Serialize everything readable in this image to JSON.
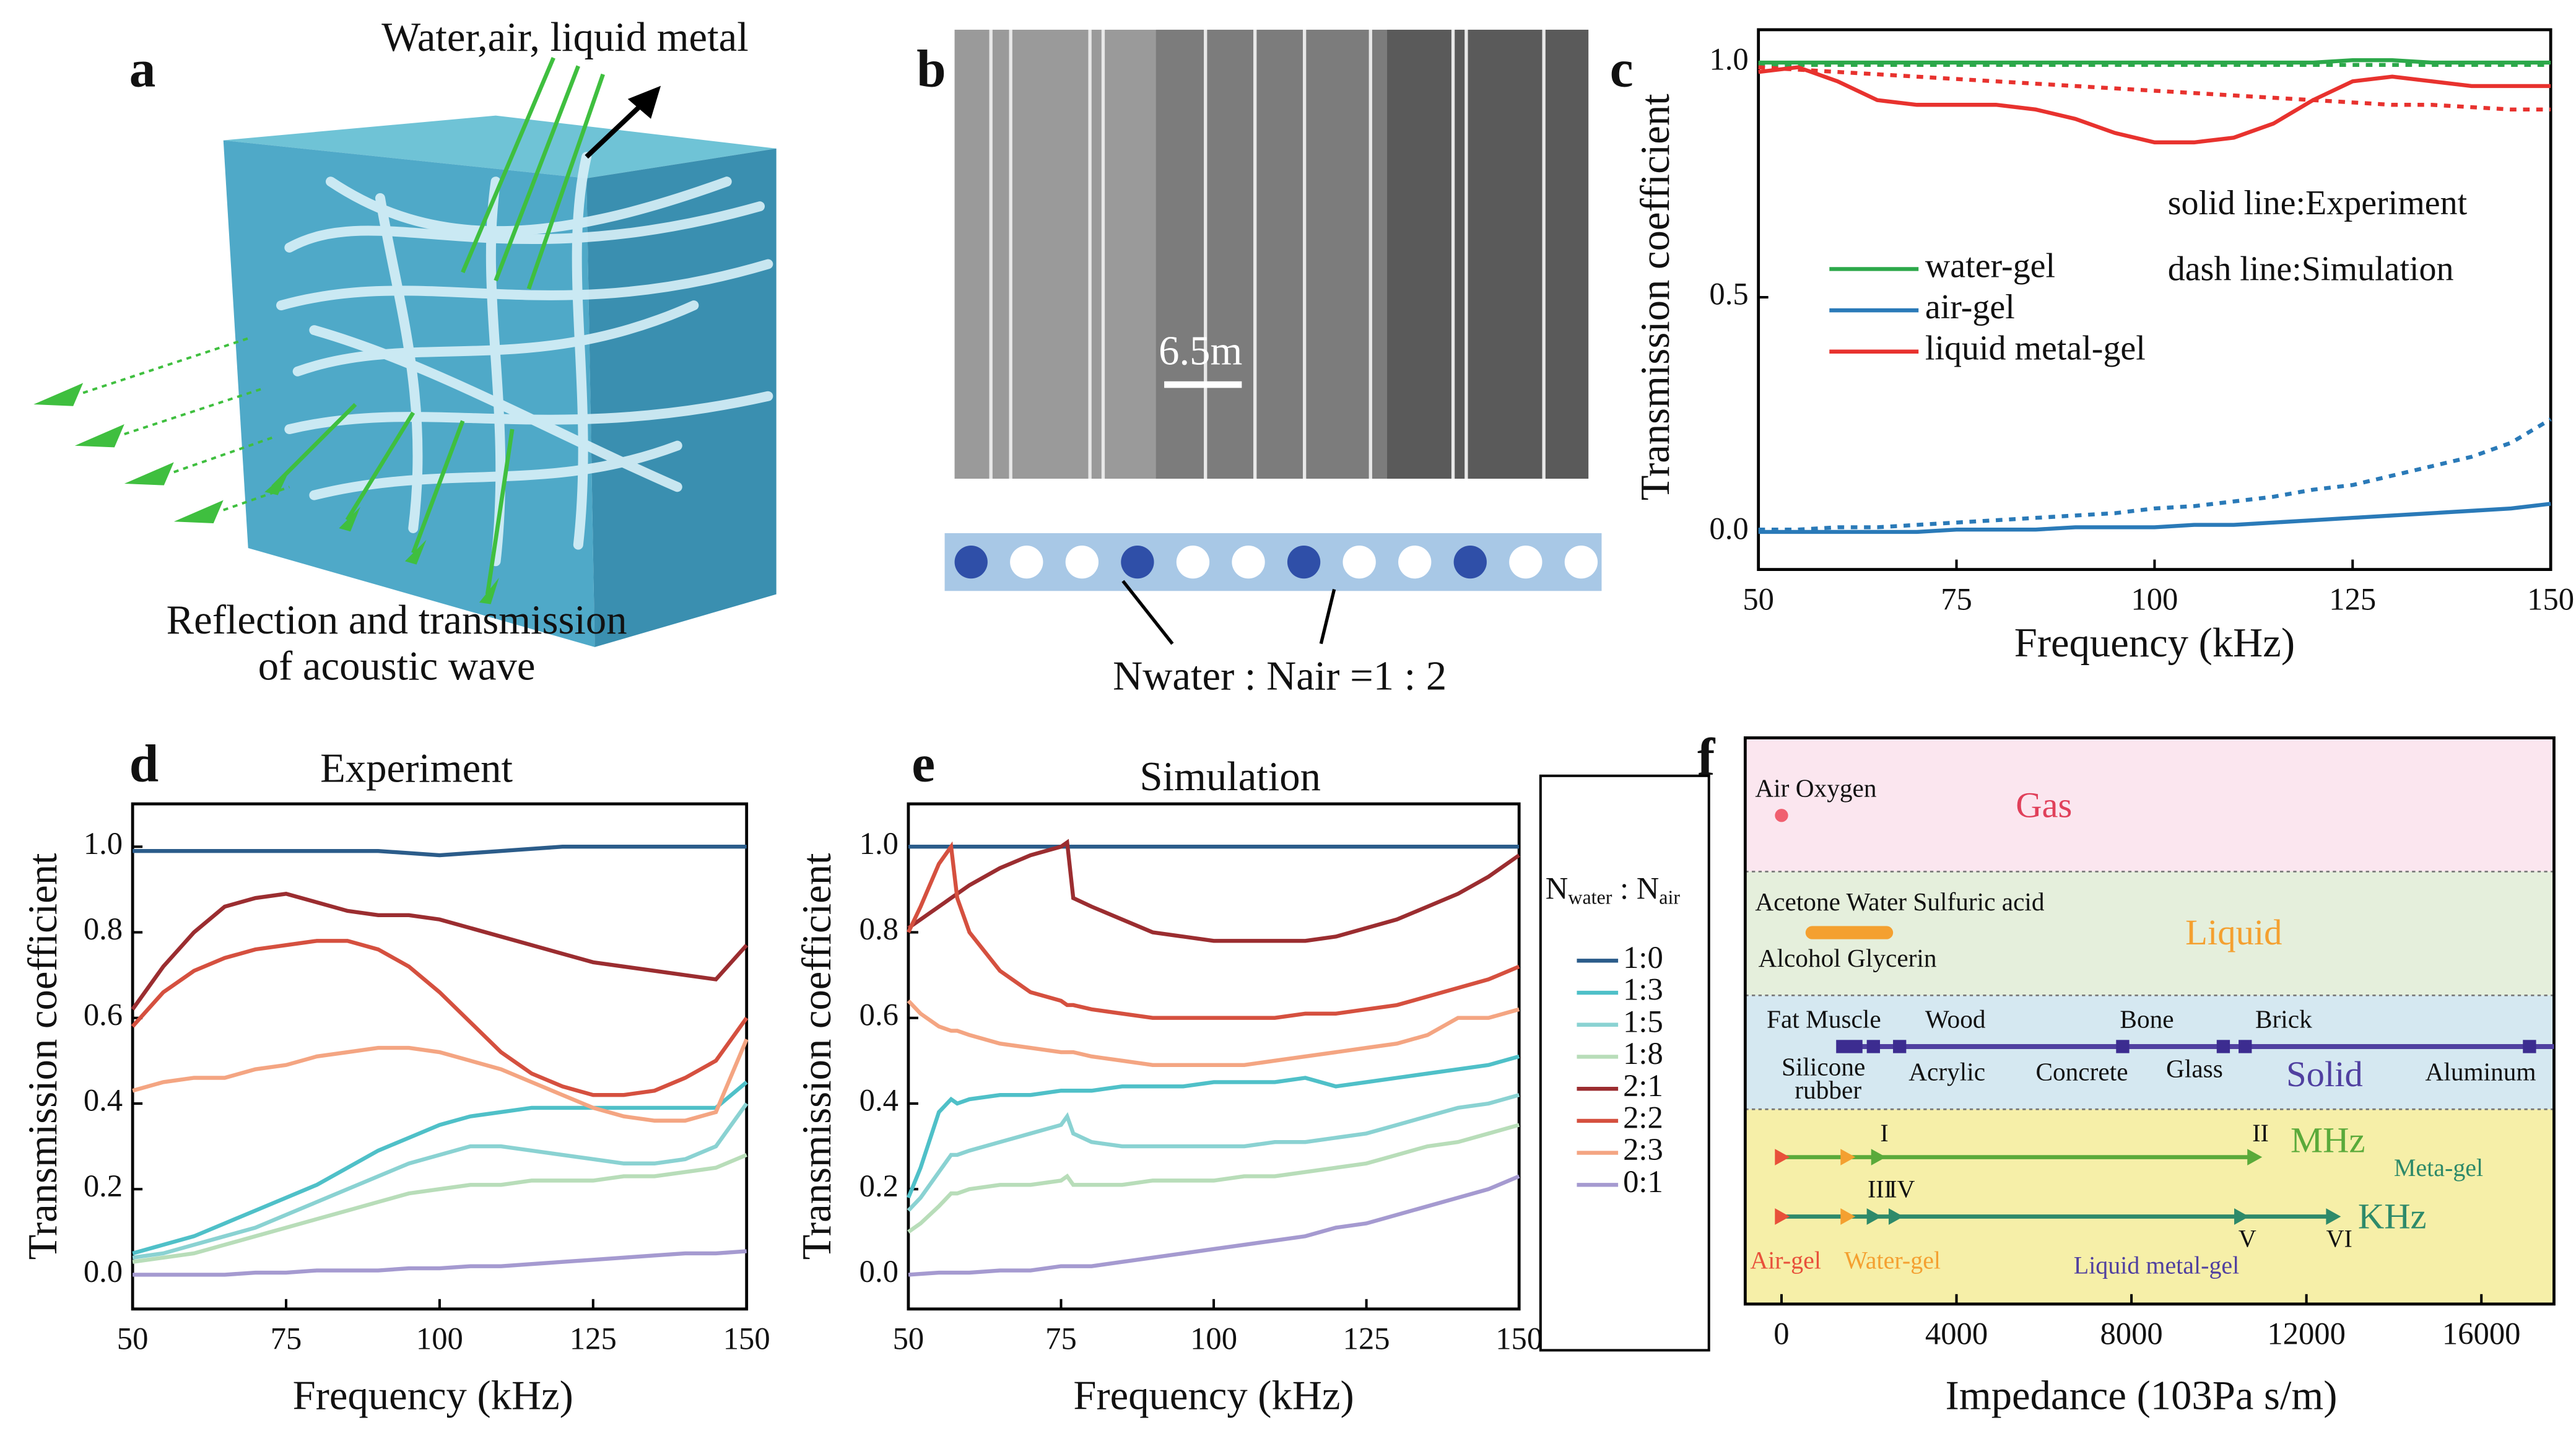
{
  "panel_labels": [
    "a",
    "b",
    "c",
    "d",
    "e",
    "f"
  ],
  "panel_a": {
    "top_label": "Water,air, liquid metal",
    "caption": [
      "Reflection and transmission",
      "of acoustic wave"
    ]
  },
  "panel_b": {
    "scale_label": "6.5m",
    "ratio_label": "Nwater : Nair =1 : 2"
  },
  "chart_data": [
    {
      "type": "line",
      "xlabel": "Frequency (kHz)",
      "ylabel": "Transmission coefficient",
      "annotations": [
        "solid line:Experiment",
        "dash line:Simulation"
      ],
      "xlim": [
        50,
        150
      ],
      "xticks": [
        50,
        75,
        100,
        125,
        150
      ],
      "ylim": [
        -0.08,
        1.07
      ],
      "yticks": [
        {
          "value": 0,
          "label": "0.0"
        },
        0.5,
        {
          "value": 1,
          "label": "1.0"
        }
      ],
      "x": [
        50,
        55,
        60,
        65,
        70,
        75,
        80,
        85,
        90,
        95,
        100,
        105,
        110,
        115,
        120,
        125,
        130,
        135,
        140,
        145,
        150
      ],
      "series": [
        {
          "name": "water-gel",
          "color": "#2ca84a",
          "values": [
            1.0,
            1.0,
            1.0,
            1.0,
            1.0,
            1.0,
            1.0,
            1.0,
            1.0,
            1.0,
            1.0,
            1.0,
            1.0,
            1.0,
            1.0,
            1.005,
            1.005,
            1.0,
            1.0,
            1.0,
            1.0
          ],
          "simulation": [
            0.995,
            0.995,
            0.995,
            0.995,
            0.995,
            0.995,
            0.995,
            0.995,
            0.995,
            0.995,
            0.995,
            0.995,
            0.995,
            0.995,
            0.995,
            0.995,
            0.995,
            0.995,
            0.995,
            0.995,
            0.995
          ]
        },
        {
          "name": "air-gel",
          "color": "#2a7ab8",
          "values": [
            0.0,
            0.0,
            0.0,
            0.0,
            0.0,
            0.005,
            0.005,
            0.005,
            0.01,
            0.01,
            0.01,
            0.015,
            0.015,
            0.02,
            0.025,
            0.03,
            0.035,
            0.04,
            0.045,
            0.05,
            0.06
          ],
          "simulation": [
            0.005,
            0.005,
            0.01,
            0.01,
            0.015,
            0.02,
            0.025,
            0.03,
            0.035,
            0.04,
            0.05,
            0.055,
            0.065,
            0.075,
            0.09,
            0.1,
            0.12,
            0.14,
            0.16,
            0.19,
            0.24
          ]
        },
        {
          "name": "liquid metal-gel",
          "color": "#e8322e",
          "values": [
            0.98,
            0.99,
            0.96,
            0.92,
            0.91,
            0.91,
            0.91,
            0.9,
            0.88,
            0.85,
            0.83,
            0.83,
            0.84,
            0.87,
            0.92,
            0.96,
            0.97,
            0.96,
            0.95,
            0.95,
            0.95
          ],
          "simulation": [
            0.99,
            0.985,
            0.98,
            0.975,
            0.97,
            0.965,
            0.96,
            0.955,
            0.95,
            0.945,
            0.94,
            0.935,
            0.93,
            0.925,
            0.92,
            0.915,
            0.91,
            0.91,
            0.905,
            0.9,
            0.9
          ]
        }
      ]
    },
    {
      "type": "line",
      "title": "Experiment",
      "xlabel": "Frequency (kHz)",
      "ylabel": "Transmission coefficient",
      "xlim": [
        50,
        150
      ],
      "xticks": [
        50,
        75,
        100,
        125,
        150
      ],
      "ylim": [
        -0.08,
        1.1
      ],
      "yticks": [
        {
          "value": 0,
          "label": "0.0"
        },
        0.2,
        0.4,
        0.6,
        0.8,
        {
          "value": 1,
          "label": "1.0"
        }
      ],
      "x": [
        50,
        55,
        60,
        65,
        70,
        75,
        80,
        85,
        90,
        95,
        100,
        105,
        110,
        115,
        120,
        125,
        130,
        135,
        140,
        145,
        150
      ],
      "series": [
        {
          "name": "1:0",
          "color": "#2b5c8a",
          "values": [
            0.99,
            0.99,
            0.99,
            0.99,
            0.99,
            0.99,
            0.99,
            0.99,
            0.99,
            0.985,
            0.98,
            0.985,
            0.99,
            0.995,
            1.0,
            1.0,
            1.0,
            1.0,
            1.0,
            1.0,
            1.0
          ]
        },
        {
          "name": "1:3",
          "color": "#4fc0c8",
          "values": [
            0.05,
            0.07,
            0.09,
            0.12,
            0.15,
            0.18,
            0.21,
            0.25,
            0.29,
            0.32,
            0.35,
            0.37,
            0.38,
            0.39,
            0.39,
            0.39,
            0.39,
            0.39,
            0.39,
            0.39,
            0.45
          ]
        },
        {
          "name": "1:5",
          "color": "#8ad2d2",
          "values": [
            0.04,
            0.05,
            0.07,
            0.09,
            0.11,
            0.14,
            0.17,
            0.2,
            0.23,
            0.26,
            0.28,
            0.3,
            0.3,
            0.29,
            0.28,
            0.27,
            0.26,
            0.26,
            0.27,
            0.3,
            0.4
          ]
        },
        {
          "name": "1:8",
          "color": "#b8ddb9",
          "values": [
            0.03,
            0.04,
            0.05,
            0.07,
            0.09,
            0.11,
            0.13,
            0.15,
            0.17,
            0.19,
            0.2,
            0.21,
            0.21,
            0.22,
            0.22,
            0.22,
            0.23,
            0.23,
            0.24,
            0.25,
            0.28
          ]
        },
        {
          "name": "2:1",
          "color": "#9b2d30",
          "values": [
            0.62,
            0.72,
            0.8,
            0.86,
            0.88,
            0.89,
            0.87,
            0.85,
            0.84,
            0.84,
            0.83,
            0.81,
            0.79,
            0.77,
            0.75,
            0.73,
            0.72,
            0.71,
            0.7,
            0.69,
            0.77
          ]
        },
        {
          "name": "2:2",
          "color": "#d5503f",
          "values": [
            0.58,
            0.66,
            0.71,
            0.74,
            0.76,
            0.77,
            0.78,
            0.78,
            0.76,
            0.72,
            0.66,
            0.59,
            0.52,
            0.47,
            0.44,
            0.42,
            0.42,
            0.43,
            0.46,
            0.5,
            0.6
          ]
        },
        {
          "name": "2:3",
          "color": "#f4a582",
          "values": [
            0.43,
            0.45,
            0.46,
            0.46,
            0.48,
            0.49,
            0.51,
            0.52,
            0.53,
            0.53,
            0.52,
            0.5,
            0.48,
            0.45,
            0.42,
            0.39,
            0.37,
            0.36,
            0.36,
            0.38,
            0.55
          ]
        },
        {
          "name": "0:1",
          "color": "#a59ad0",
          "values": [
            0.0,
            0.0,
            0.0,
            0.0,
            0.005,
            0.005,
            0.01,
            0.01,
            0.01,
            0.015,
            0.015,
            0.02,
            0.02,
            0.025,
            0.03,
            0.035,
            0.04,
            0.045,
            0.05,
            0.05,
            0.055
          ]
        }
      ]
    },
    {
      "type": "line",
      "title": "Simulation",
      "xlabel": "Frequency (kHz)",
      "ylabel": "Transmission coefficient",
      "legend_title": [
        "N",
        "water",
        " : N",
        "air"
      ],
      "xlim": [
        50,
        150
      ],
      "xticks": [
        50,
        75,
        100,
        125,
        150
      ],
      "ylim": [
        -0.08,
        1.1
      ],
      "yticks": [
        {
          "value": 0,
          "label": "0.0"
        },
        0.2,
        0.4,
        0.6,
        0.8,
        {
          "value": 1,
          "label": "1.0"
        }
      ],
      "x": [
        50,
        52,
        55,
        57,
        58,
        60,
        65,
        70,
        75,
        76,
        77,
        80,
        85,
        90,
        95,
        100,
        105,
        110,
        115,
        120,
        125,
        130,
        135,
        140,
        145,
        150
      ],
      "series": [
        {
          "name": "1:0",
          "color": "#2b5c8a",
          "values": [
            1.0,
            1.0,
            1.0,
            1.0,
            1.0,
            1.0,
            1.0,
            1.0,
            1.0,
            1.0,
            1.0,
            1.0,
            1.0,
            1.0,
            1.0,
            1.0,
            1.0,
            1.0,
            1.0,
            1.0,
            1.0,
            1.0,
            1.0,
            1.0,
            1.0,
            1.0
          ]
        },
        {
          "name": "1:3",
          "color": "#4fc0c8",
          "values": [
            0.18,
            0.25,
            0.38,
            0.41,
            0.4,
            0.41,
            0.42,
            0.42,
            0.43,
            0.43,
            0.43,
            0.43,
            0.44,
            0.44,
            0.44,
            0.45,
            0.45,
            0.45,
            0.46,
            0.44,
            0.45,
            0.46,
            0.47,
            0.48,
            0.49,
            0.51
          ]
        },
        {
          "name": "1:5",
          "color": "#8ad2d2",
          "values": [
            0.15,
            0.18,
            0.24,
            0.28,
            0.28,
            0.29,
            0.31,
            0.33,
            0.35,
            0.37,
            0.33,
            0.31,
            0.3,
            0.3,
            0.3,
            0.3,
            0.3,
            0.31,
            0.31,
            0.32,
            0.33,
            0.35,
            0.37,
            0.39,
            0.4,
            0.42
          ]
        },
        {
          "name": "1:8",
          "color": "#b8ddb9",
          "values": [
            0.1,
            0.12,
            0.16,
            0.19,
            0.19,
            0.2,
            0.21,
            0.21,
            0.22,
            0.23,
            0.21,
            0.21,
            0.21,
            0.22,
            0.22,
            0.22,
            0.23,
            0.23,
            0.24,
            0.25,
            0.26,
            0.28,
            0.3,
            0.31,
            0.33,
            0.35
          ]
        },
        {
          "name": "2:1",
          "color": "#9b2d30",
          "values": [
            0.81,
            0.83,
            0.86,
            0.88,
            0.89,
            0.91,
            0.95,
            0.98,
            1.0,
            1.01,
            0.88,
            0.86,
            0.83,
            0.8,
            0.79,
            0.78,
            0.78,
            0.78,
            0.78,
            0.79,
            0.81,
            0.83,
            0.86,
            0.89,
            0.93,
            0.98
          ]
        },
        {
          "name": "2:2",
          "color": "#d5503f",
          "values": [
            0.8,
            0.86,
            0.96,
            1.0,
            0.88,
            0.8,
            0.71,
            0.66,
            0.64,
            0.63,
            0.63,
            0.62,
            0.61,
            0.6,
            0.6,
            0.6,
            0.6,
            0.6,
            0.61,
            0.61,
            0.62,
            0.63,
            0.65,
            0.67,
            0.69,
            0.72
          ]
        },
        {
          "name": "2:3",
          "color": "#f4a582",
          "values": [
            0.64,
            0.61,
            0.58,
            0.57,
            0.57,
            0.56,
            0.54,
            0.53,
            0.52,
            0.52,
            0.52,
            0.51,
            0.5,
            0.49,
            0.49,
            0.49,
            0.49,
            0.5,
            0.51,
            0.52,
            0.53,
            0.54,
            0.56,
            0.6,
            0.6,
            0.62
          ]
        },
        {
          "name": "0:1",
          "color": "#a59ad0",
          "values": [
            0.0,
            0.002,
            0.005,
            0.005,
            0.005,
            0.005,
            0.01,
            0.01,
            0.02,
            0.02,
            0.02,
            0.02,
            0.03,
            0.04,
            0.05,
            0.06,
            0.07,
            0.08,
            0.09,
            0.11,
            0.12,
            0.14,
            0.16,
            0.18,
            0.2,
            0.23
          ]
        }
      ]
    },
    {
      "type": "scale",
      "xlabel": "Impedance (103Pa s/m)",
      "xlim": [
        -830,
        17660
      ],
      "xticks": [
        0,
        4000,
        8000,
        12000,
        16000
      ],
      "regions": [
        {
          "name": "Gas",
          "color": "#fbe6ef",
          "text_color": "#e0405a",
          "labels": [
            "Air  Oxygen"
          ]
        },
        {
          "name": "Liquid",
          "color": "#e5efdc",
          "text_color": "#f4a030",
          "labels": [
            "Acetone Water Sulfuric acid",
            "Alcohol Glycerin"
          ]
        },
        {
          "name": "Solid",
          "color": "#d5e8f1",
          "text_color": "#5040a0",
          "labels": [
            "Fat Muscle",
            "Wood",
            "Bone",
            "Brick",
            "Silicone",
            "rubber",
            "Acrylic",
            "Concrete",
            "Glass",
            "Aluminum"
          ]
        },
        {
          "name": null,
          "color": "#f6efa8",
          "text_color": "#2e8a6a",
          "labels": [
            "Meta-gel"
          ]
        }
      ],
      "gas_values": [
        0
      ],
      "liquid_range": [
        700,
        2400
      ],
      "solid_values": [
        1400,
        1700,
        2100,
        2700,
        7800,
        10100,
        10600,
        17100
      ],
      "lines": [
        {
          "name": "MHz",
          "color": "#5aaa3a",
          "values": [
            0,
            1500,
            2200,
            10800
          ],
          "labels": [
            null,
            null,
            "I",
            "II"
          ]
        },
        {
          "name": "KHz",
          "color": "#2e8a6a",
          "values": [
            0,
            1500,
            2100,
            2600,
            10500,
            12600
          ],
          "labels": [
            null,
            null,
            "III",
            "IV",
            "V",
            "VI"
          ]
        }
      ],
      "marker_labels": [
        "Air-gel",
        "Water-gel",
        "Liquid metal-gel"
      ]
    }
  ]
}
